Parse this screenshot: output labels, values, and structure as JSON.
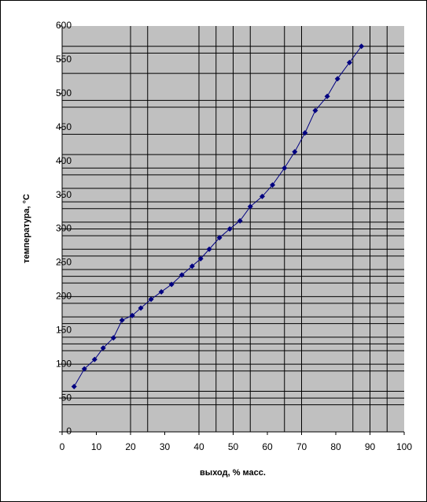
{
  "chart_data": {
    "type": "line",
    "x_label": "выход, % масс.",
    "y_label": "температура, °C",
    "x": [
      3.5,
      6.5,
      9.5,
      12,
      15,
      17.5,
      20.5,
      23,
      26,
      29,
      32,
      35,
      38,
      40.5,
      43,
      46,
      49,
      52,
      55,
      58.5,
      61.5,
      65,
      68,
      71,
      74,
      77.5,
      80.5,
      84,
      87.5
    ],
    "series": [
      {
        "color": "#000080",
        "values": [
          67,
          93,
          107,
          124,
          139,
          165,
          172,
          183,
          196,
          207,
          218,
          232,
          245,
          256,
          270,
          287,
          300,
          312,
          333,
          348,
          365,
          390,
          414,
          442,
          475,
          496,
          522,
          546,
          570
        ]
      }
    ],
    "xlim": [
      0,
      100
    ],
    "xticks": [
      0,
      10,
      20,
      30,
      40,
      50,
      60,
      70,
      80,
      90,
      100
    ],
    "ylim": [
      0,
      600
    ],
    "yticks": [
      0,
      50,
      100,
      150,
      200,
      250,
      300,
      350,
      400,
      450,
      500,
      550,
      600
    ],
    "xgrid": [
      20,
      25,
      40,
      45,
      50,
      55,
      65,
      70,
      85,
      90,
      95
    ],
    "ygrid": [
      570,
      560,
      530,
      490,
      480,
      440,
      410,
      390,
      380,
      360,
      340,
      330,
      310,
      300,
      290,
      270,
      260,
      240,
      230,
      220,
      200,
      190,
      170,
      160,
      140,
      130,
      120,
      100,
      90,
      60,
      50,
      40
    ],
    "plot_background": "#c0c0c0"
  }
}
